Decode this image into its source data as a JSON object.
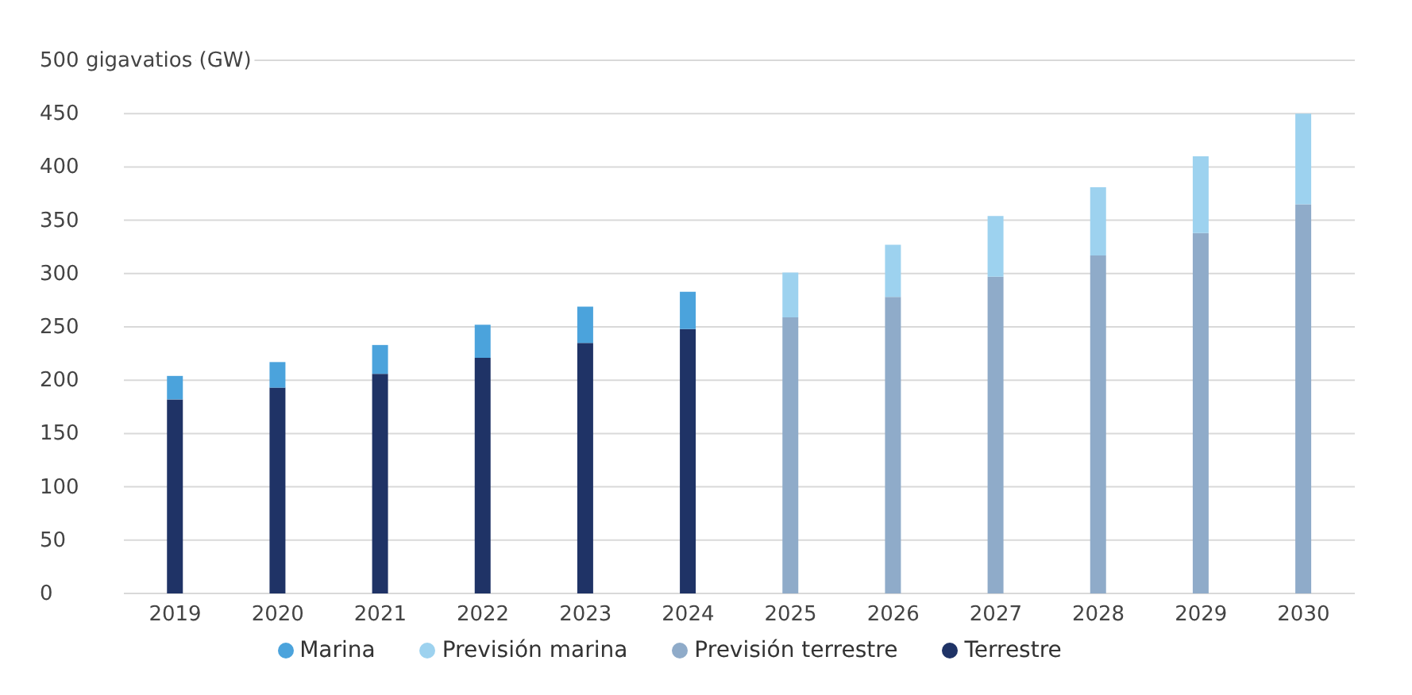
{
  "chart_data": {
    "type": "bar",
    "stacked": true,
    "categories": [
      "2019",
      "2020",
      "2021",
      "2022",
      "2023",
      "2024",
      "2025",
      "2026",
      "2027",
      "2028",
      "2029",
      "2030"
    ],
    "series": [
      {
        "name": "Terrestre",
        "color": "#1f3366",
        "values": [
          182,
          193,
          206,
          221,
          235,
          248,
          null,
          null,
          null,
          null,
          null,
          null
        ]
      },
      {
        "name": "Marina",
        "color": "#4ba3dc",
        "values": [
          22,
          24,
          27,
          31,
          34,
          35,
          null,
          null,
          null,
          null,
          null,
          null
        ]
      },
      {
        "name": "Previsión terrestre",
        "color": "#8fabc9",
        "values": [
          null,
          null,
          null,
          null,
          null,
          null,
          259,
          278,
          297,
          317,
          338,
          365
        ]
      },
      {
        "name": "Previsión marina",
        "color": "#9dd2ef",
        "values": [
          null,
          null,
          null,
          null,
          null,
          null,
          42,
          49,
          57,
          64,
          72,
          85
        ]
      }
    ],
    "ylim": [
      0,
      500
    ],
    "yticks": [
      0,
      50,
      100,
      150,
      200,
      250,
      300,
      350,
      400,
      450,
      {
        "value": 500,
        "label": "500 gigavatios (GW)"
      }
    ],
    "grid": "y",
    "legend": "bottom"
  }
}
